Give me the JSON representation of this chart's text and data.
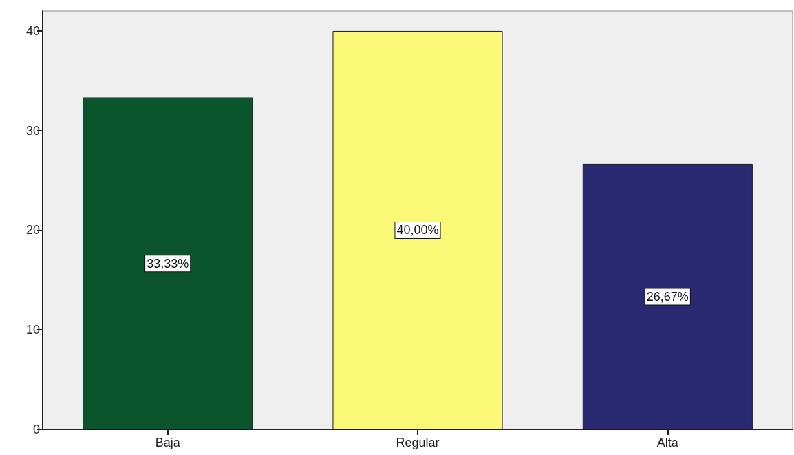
{
  "chart_data": {
    "type": "bar",
    "categories": [
      "Baja",
      "Regular",
      "Alta"
    ],
    "values": [
      33.33,
      40,
      26.67
    ],
    "colors": [
      "#0b552c",
      "#fbf877",
      "#292a72"
    ],
    "ylim": [
      0,
      42
    ],
    "yticks": [
      0,
      10,
      20,
      30,
      40
    ],
    "grid": false,
    "value_labels": [
      "33,33%",
      "40,00%",
      "26,67%"
    ]
  }
}
